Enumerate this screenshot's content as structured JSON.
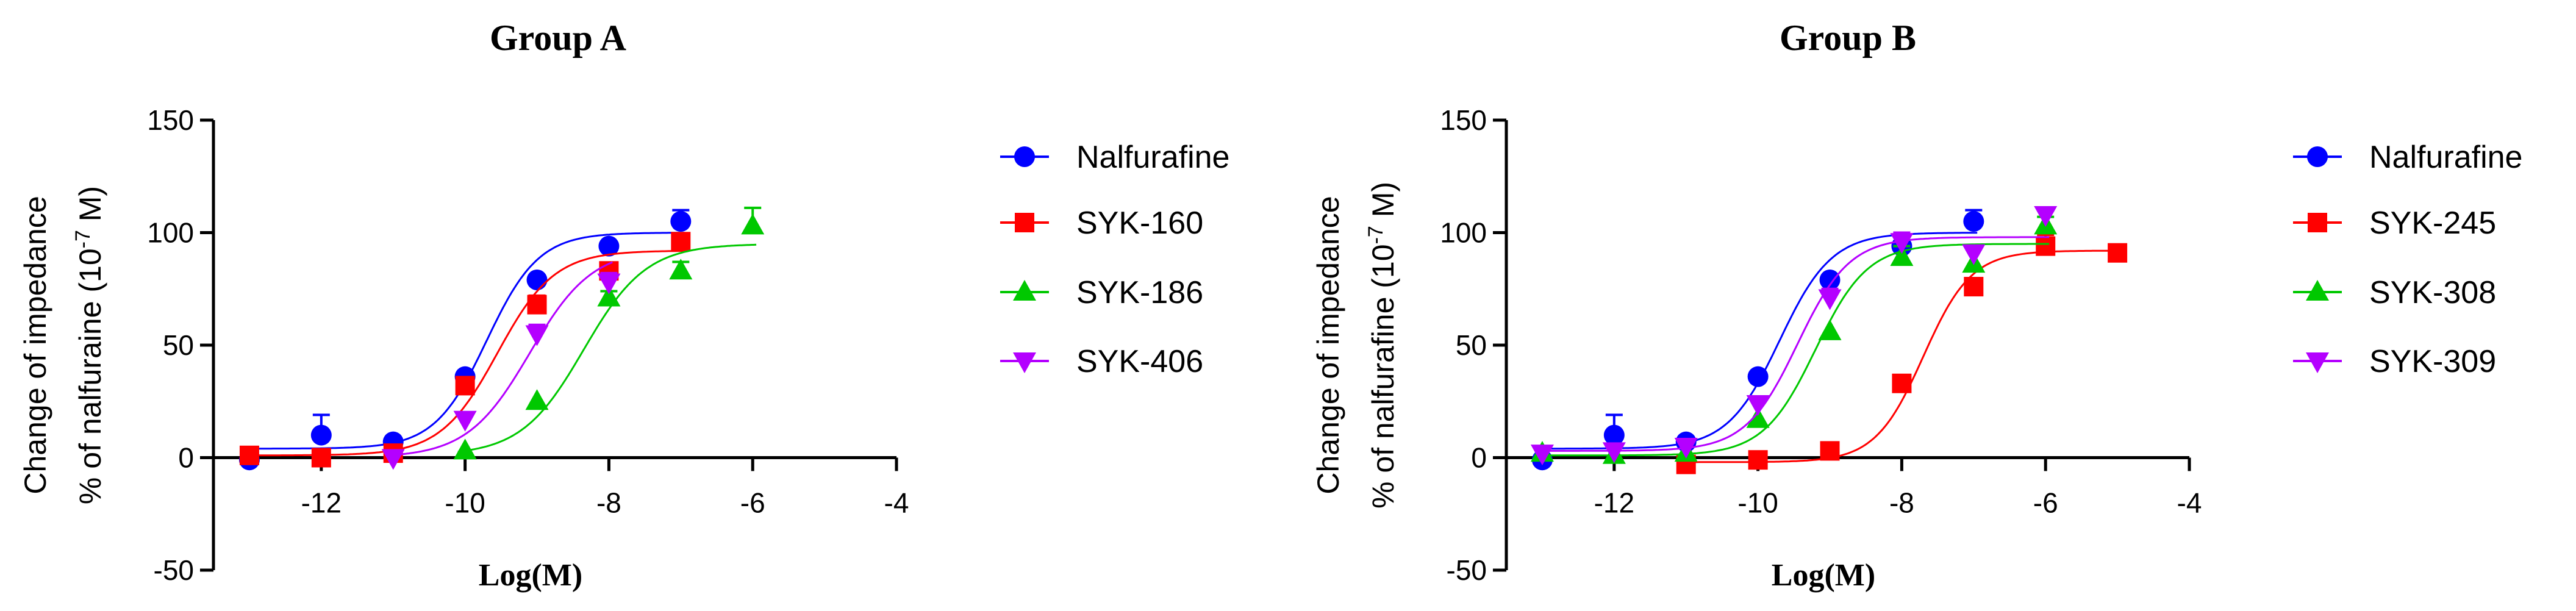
{
  "chart_data": [
    {
      "type": "scatter",
      "title": "Group A",
      "xlabel": "Log(M)",
      "ylabel_line1": "Change of impedance",
      "ylabel_line2_prefix": "% of nalfuraine (10",
      "ylabel_sup": "-7",
      "ylabel_line2_suffix": " M)",
      "xlim": [
        -13.5,
        -4
      ],
      "ylim": [
        -50,
        150
      ],
      "xticks": [
        -12,
        -10,
        -8,
        -6,
        -4
      ],
      "yticks": [
        -50,
        0,
        50,
        100,
        150
      ],
      "grid": false,
      "legend_position": "right",
      "series": [
        {
          "name": "Nalfurafine",
          "color": "#0000ff",
          "marker": "circle",
          "x": [
            -13,
            -12,
            -11,
            -10,
            -9,
            -8,
            -7
          ],
          "y": [
            -1,
            10,
            7,
            36,
            79,
            94,
            105
          ],
          "err": [
            0,
            9,
            0,
            0,
            0,
            0,
            5
          ],
          "fit": {
            "bottom": 4,
            "top": 100,
            "logec50": -9.7,
            "hill": 1.2
          }
        },
        {
          "name": "SYK-160",
          "color": "#ff0000",
          "marker": "square",
          "x": [
            -13,
            -12,
            -11,
            -10,
            -9,
            -8,
            -7
          ],
          "y": [
            1,
            0,
            2,
            32,
            68,
            83,
            96
          ],
          "err": [
            0,
            0,
            0,
            0,
            4,
            0,
            0
          ],
          "fit": {
            "bottom": 1,
            "top": 92,
            "logec50": -9.55,
            "hill": 1.1
          }
        },
        {
          "name": "SYK-186",
          "color": "#00c800",
          "marker": "triangle-up",
          "x": [
            -10,
            -9,
            -8,
            -7,
            -6
          ],
          "y": [
            3,
            25,
            71,
            83,
            103
          ],
          "err": [
            0,
            0,
            3,
            4,
            8
          ],
          "fit": {
            "bottom": 1,
            "top": 95,
            "logec50": -8.35,
            "hill": 1.0
          }
        },
        {
          "name": "SYK-406",
          "color": "#b400ff",
          "marker": "triangle-down",
          "x": [
            -11,
            -10,
            -9,
            -8
          ],
          "y": [
            0,
            17,
            55,
            78
          ],
          "err": [
            0,
            0,
            4,
            4
          ],
          "fit": {
            "bottom": 0,
            "top": 93,
            "logec50": -9.1,
            "hill": 1.0
          }
        }
      ]
    },
    {
      "type": "scatter",
      "title": "Group B",
      "xlabel": "Log(M)",
      "ylabel_line1": "Change of impedance",
      "ylabel_line2_prefix": "% of nalfurafine (10",
      "ylabel_sup": "-7",
      "ylabel_line2_suffix": " M)",
      "xlim": [
        -13.5,
        -4
      ],
      "ylim": [
        -50,
        150
      ],
      "xticks": [
        -12,
        -10,
        -8,
        -6,
        -4
      ],
      "yticks": [
        -50,
        0,
        50,
        100,
        150
      ],
      "grid": false,
      "legend_position": "right",
      "series": [
        {
          "name": "Nalfurafine",
          "color": "#0000ff",
          "marker": "circle",
          "x": [
            -13,
            -12,
            -11,
            -10,
            -9,
            -8,
            -7
          ],
          "y": [
            -1,
            10,
            7,
            36,
            79,
            94,
            105
          ],
          "err": [
            0,
            9,
            0,
            0,
            0,
            0,
            5
          ],
          "fit": {
            "bottom": 4,
            "top": 100,
            "logec50": -9.7,
            "hill": 1.2
          }
        },
        {
          "name": "SYK-245",
          "color": "#ff0000",
          "marker": "square",
          "x": [
            -11,
            -10,
            -9,
            -8,
            -7,
            -6,
            -5
          ],
          "y": [
            -3,
            -1,
            3,
            33,
            76,
            94,
            91
          ],
          "err": [
            0,
            0,
            0,
            0,
            0,
            5,
            0
          ],
          "fit": {
            "bottom": -2,
            "top": 92,
            "logec50": -7.7,
            "hill": 1.3
          }
        },
        {
          "name": "SYK-308",
          "color": "#00c800",
          "marker": "triangle-up",
          "x": [
            -13,
            -12,
            -11,
            -10,
            -9,
            -8,
            -7,
            -6
          ],
          "y": [
            2,
            1,
            2,
            17,
            56,
            89,
            86,
            103
          ],
          "err": [
            0,
            0,
            0,
            0,
            0,
            5,
            0,
            4
          ],
          "fit": {
            "bottom": 1,
            "top": 95,
            "logec50": -9.2,
            "hill": 1.2
          }
        },
        {
          "name": "SYK-309",
          "color": "#b400ff",
          "marker": "triangle-down",
          "x": [
            -13,
            -12,
            -11,
            -10,
            -9,
            -8,
            -7,
            -6
          ],
          "y": [
            2,
            3,
            5,
            24,
            71,
            96,
            91,
            108
          ],
          "err": [
            0,
            0,
            0,
            0,
            4,
            4,
            0,
            0
          ],
          "fit": {
            "bottom": 3,
            "top": 98,
            "logec50": -9.45,
            "hill": 1.2
          }
        }
      ]
    }
  ]
}
